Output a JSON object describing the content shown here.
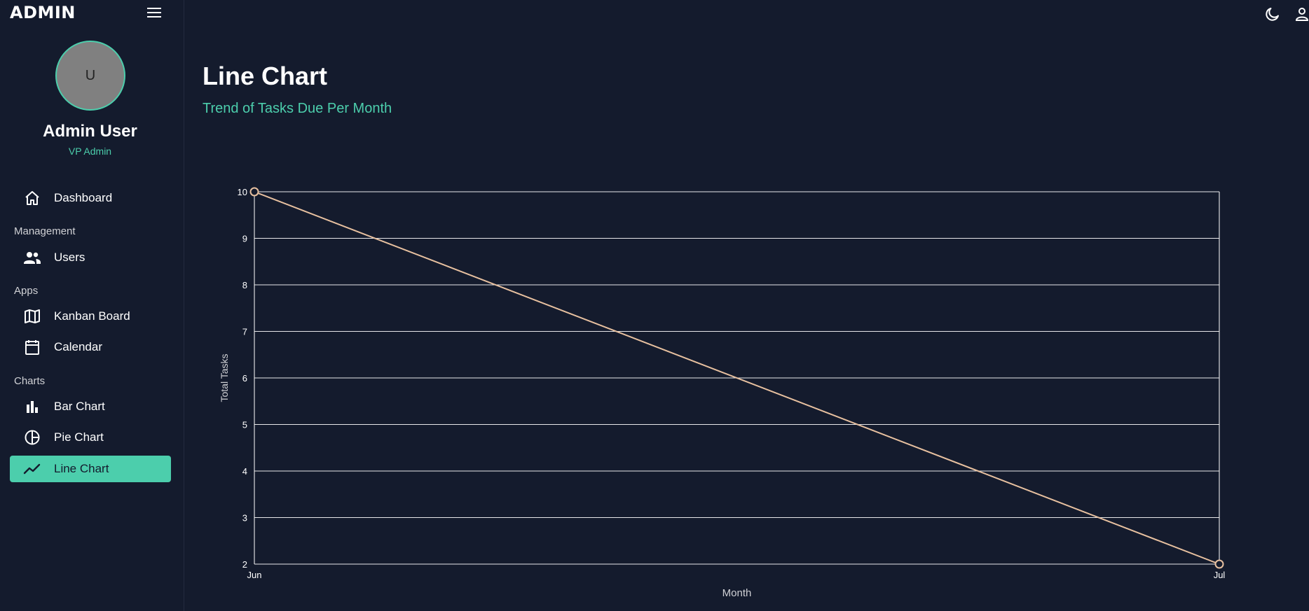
{
  "app": {
    "brand": "ADMIN"
  },
  "profile": {
    "avatar_initial": "U",
    "name": "Admin User",
    "role": "VP Admin"
  },
  "nav": {
    "dashboard": "Dashboard",
    "section_management": "Management",
    "users": "Users",
    "section_apps": "Apps",
    "kanban": "Kanban Board",
    "calendar": "Calendar",
    "section_charts": "Charts",
    "bar_chart": "Bar Chart",
    "pie_chart": "Pie Chart",
    "line_chart": "Line Chart",
    "active": "line_chart"
  },
  "topbar": {
    "icons": [
      "moon-icon",
      "user-icon"
    ]
  },
  "header": {
    "title": "Line Chart",
    "subtitle": "Trend of Tasks Due Per Month"
  },
  "colors": {
    "background": "#141b2d",
    "accent": "#4cceac",
    "line": "#e8c1a0",
    "grid": "#ffffff"
  },
  "chart_data": {
    "type": "line",
    "categories": [
      "Jun",
      "Jul"
    ],
    "series": [
      {
        "values": [
          10,
          2
        ]
      }
    ],
    "xlabel": "Month",
    "ylabel": "Total Tasks",
    "ylim": [
      2,
      10
    ],
    "yticks": [
      2,
      3,
      4,
      5,
      6,
      7,
      8,
      9,
      10
    ],
    "grid": true
  }
}
